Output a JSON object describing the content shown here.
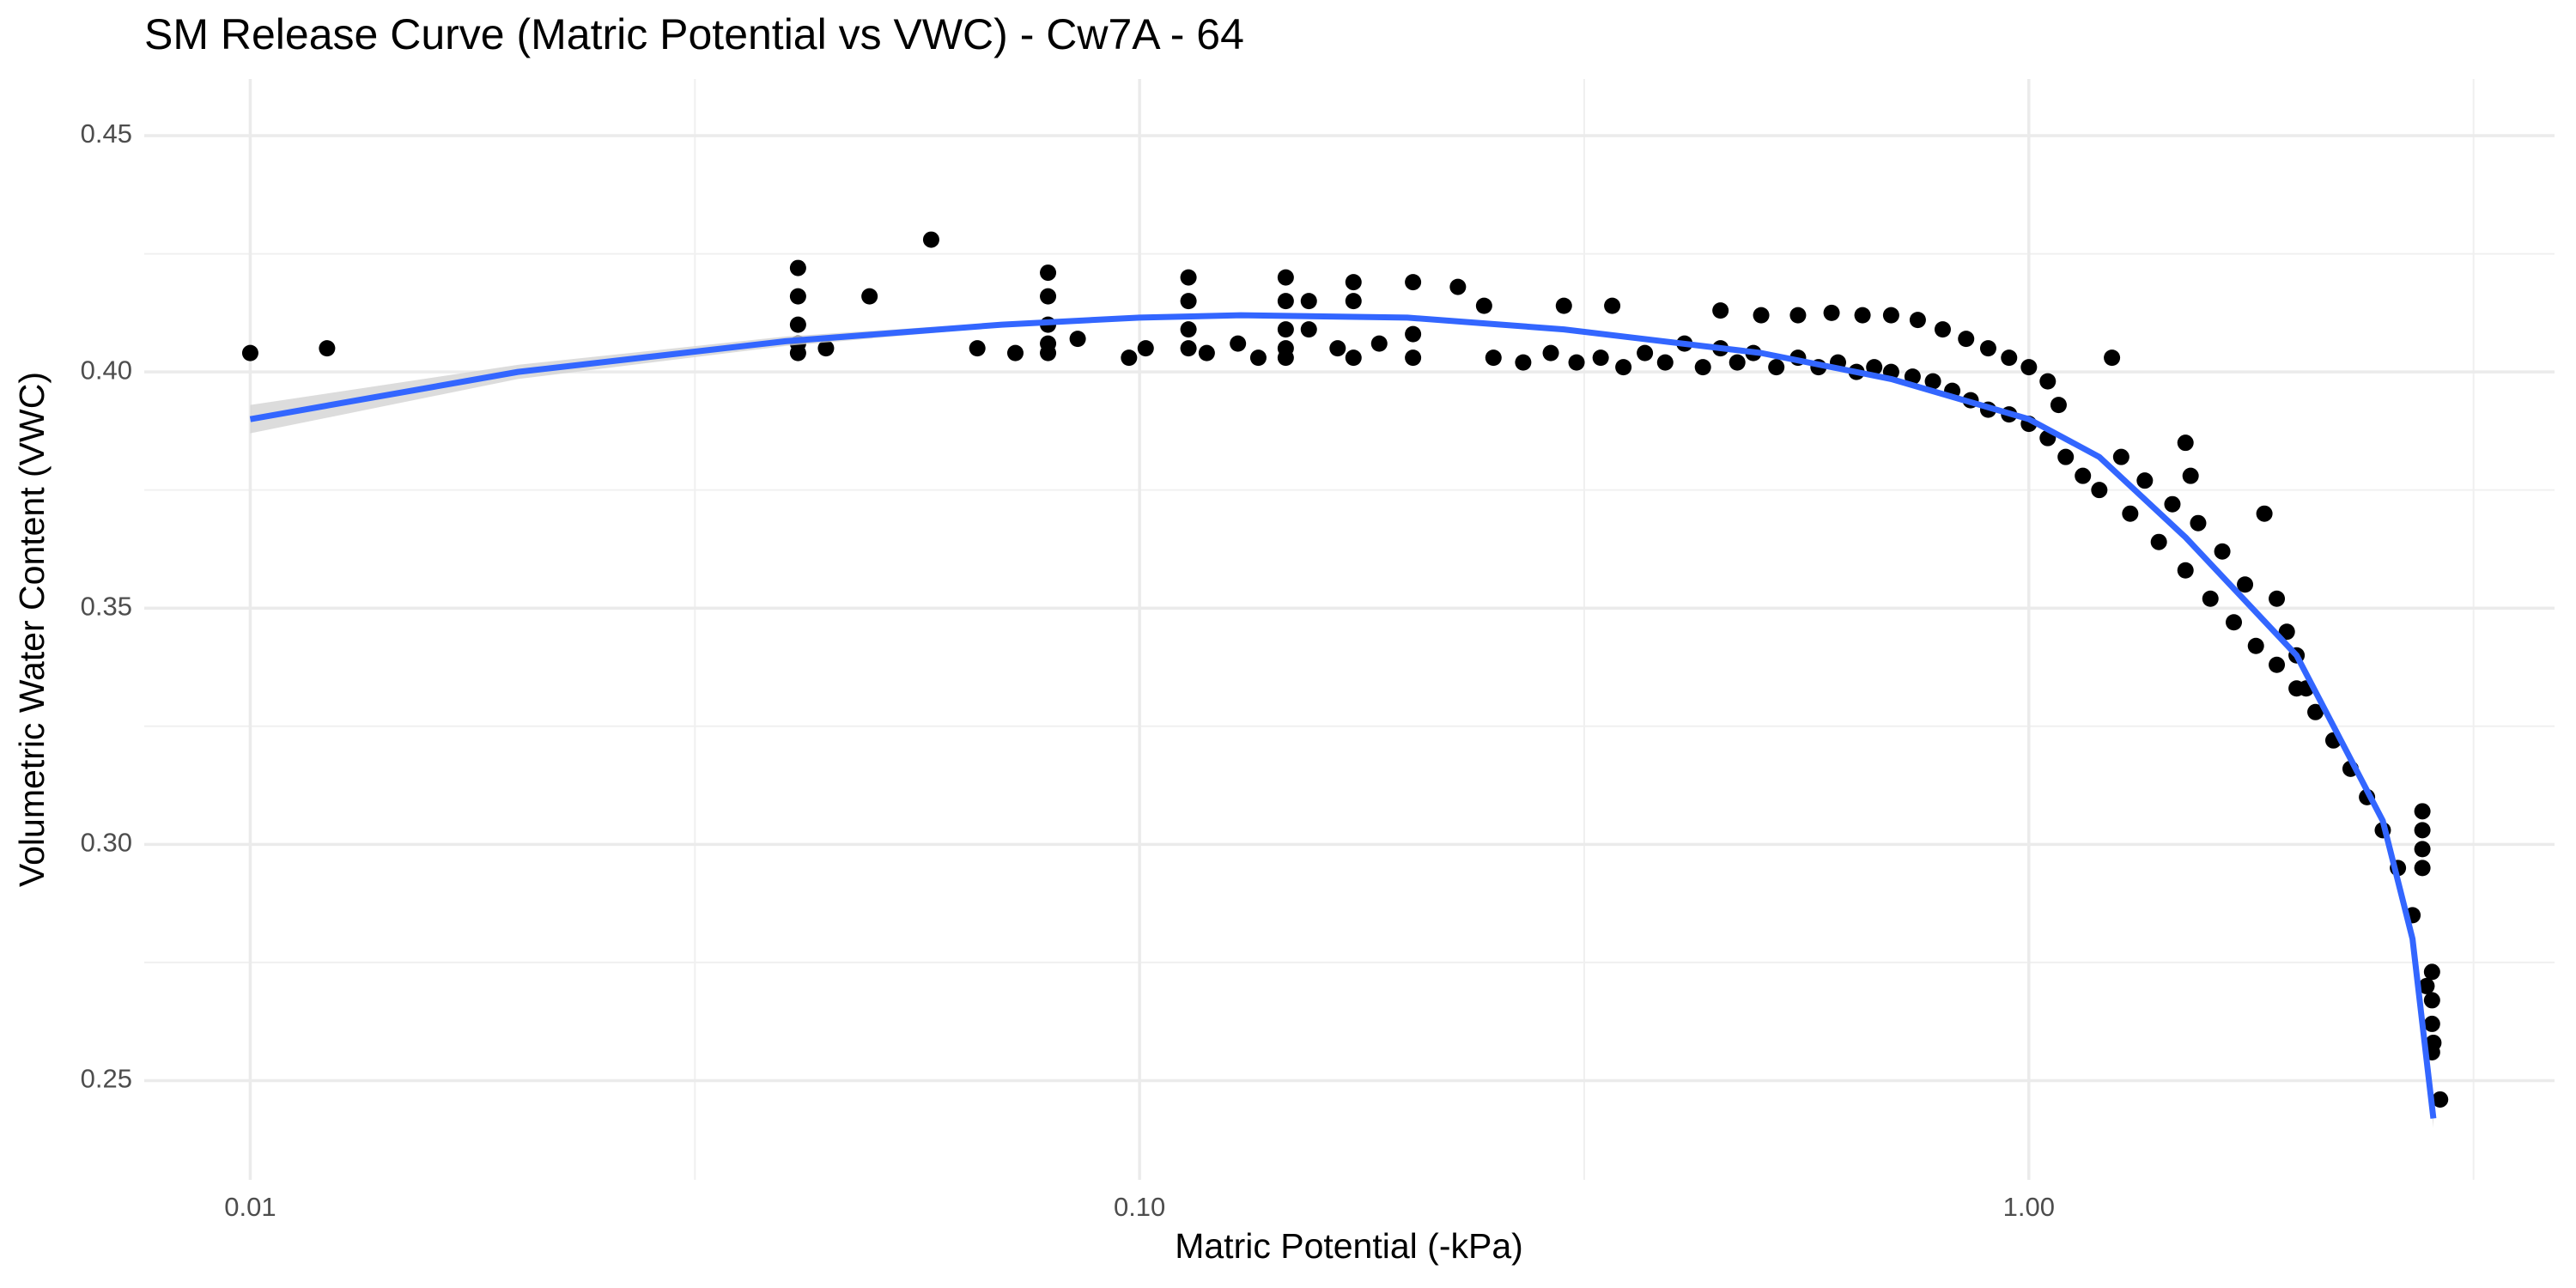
{
  "chart_data": {
    "type": "scatter",
    "title": "SM Release Curve (Matric Potential vs VWC) - Cw7A - 64",
    "x_label": "Matric Potential (-kPa)",
    "y_label": "Volumetric Water Content (VWC)",
    "log_x": true,
    "grid": true,
    "xlim": [
      0.0076,
      3.9
    ],
    "ylim": [
      0.229,
      0.462
    ],
    "xticks": [
      {
        "value": 0.01,
        "label": "0.01"
      },
      {
        "value": 0.1,
        "label": "0.10"
      },
      {
        "value": 1,
        "label": "1.00"
      }
    ],
    "yticks": [
      0.25,
      {
        "value": 0.3,
        "label": "0.30"
      },
      0.35,
      {
        "value": 0.4,
        "label": "0.40"
      },
      0.45
    ],
    "points": {
      "color": "#000000",
      "x": [
        0.01,
        0.0122,
        0.0413,
        0.0413,
        0.0413,
        0.0413,
        0.0413,
        0.0444,
        0.0497,
        0.0583,
        0.0657,
        0.0725,
        0.0789,
        0.0789,
        0.0789,
        0.0789,
        0.0789,
        0.0852,
        0.0973,
        0.1016,
        0.1135,
        0.1135,
        0.1135,
        0.1135,
        0.119,
        0.129,
        0.136,
        0.146,
        0.146,
        0.146,
        0.146,
        0.146,
        0.155,
        0.155,
        0.167,
        0.174,
        0.174,
        0.174,
        0.186,
        0.203,
        0.203,
        0.203,
        0.228,
        0.244,
        0.3,
        0.34,
        0.25,
        0.27,
        0.29,
        0.31,
        0.33,
        0.35,
        0.37,
        0.39,
        0.41,
        0.43,
        0.45,
        0.47,
        0.49,
        0.52,
        0.55,
        0.58,
        0.61,
        0.64,
        0.67,
        0.7,
        0.74,
        0.78,
        0.82,
        0.86,
        0.9,
        0.95,
        0.45,
        0.5,
        0.55,
        0.6,
        0.65,
        0.7,
        0.75,
        0.8,
        0.85,
        0.9,
        0.95,
        1.0,
        1.05,
        1.08,
        1.24,
        1.0,
        1.05,
        1.1,
        1.15,
        1.2,
        1.3,
        1.4,
        1.5,
        1.6,
        1.7,
        1.8,
        1.9,
        2.0,
        2.1,
        2.2,
        2.3,
        2.4,
        2.5,
        2.6,
        2.7,
        2.8,
        2.85,
        2.9,
        1.27,
        1.35,
        1.45,
        1.5,
        1.52,
        1.55,
        1.65,
        1.75,
        1.84,
        1.9,
        1.95,
        2.0,
        2.05,
        2.77,
        2.77,
        2.77,
        2.77,
        2.84,
        2.84,
        2.84,
        2.84
      ],
      "y": [
        0.404,
        0.405,
        0.422,
        0.416,
        0.41,
        0.406,
        0.404,
        0.405,
        0.416,
        0.428,
        0.405,
        0.404,
        0.421,
        0.416,
        0.41,
        0.406,
        0.404,
        0.407,
        0.403,
        0.405,
        0.42,
        0.415,
        0.409,
        0.405,
        0.404,
        0.406,
        0.403,
        0.42,
        0.415,
        0.409,
        0.405,
        0.403,
        0.415,
        0.409,
        0.405,
        0.419,
        0.415,
        0.403,
        0.406,
        0.419,
        0.408,
        0.403,
        0.418,
        0.414,
        0.414,
        0.414,
        0.403,
        0.402,
        0.404,
        0.402,
        0.403,
        0.401,
        0.404,
        0.402,
        0.406,
        0.401,
        0.405,
        0.402,
        0.404,
        0.401,
        0.403,
        0.401,
        0.402,
        0.4,
        0.401,
        0.4,
        0.399,
        0.398,
        0.396,
        0.394,
        0.392,
        0.391,
        0.413,
        0.412,
        0.412,
        0.4125,
        0.412,
        0.412,
        0.411,
        0.409,
        0.407,
        0.405,
        0.403,
        0.401,
        0.398,
        0.393,
        0.403,
        0.389,
        0.386,
        0.382,
        0.378,
        0.375,
        0.37,
        0.364,
        0.358,
        0.352,
        0.347,
        0.342,
        0.338,
        0.333,
        0.328,
        0.322,
        0.316,
        0.31,
        0.303,
        0.295,
        0.285,
        0.27,
        0.258,
        0.246,
        0.382,
        0.377,
        0.372,
        0.385,
        0.378,
        0.368,
        0.362,
        0.355,
        0.37,
        0.352,
        0.345,
        0.34,
        0.333,
        0.307,
        0.303,
        0.299,
        0.295,
        0.273,
        0.267,
        0.262,
        0.256
      ]
    },
    "fit": {
      "color": "#3366ff",
      "band_color": "#d3d3d3",
      "x": [
        0.01,
        0.02,
        0.04,
        0.07,
        0.1,
        0.13,
        0.2,
        0.3,
        0.5,
        0.7,
        1.0,
        1.2,
        1.5,
        2.0,
        2.5,
        2.7,
        2.85
      ],
      "y": [
        0.39,
        0.4,
        0.4065,
        0.41,
        0.4115,
        0.412,
        0.4115,
        0.409,
        0.404,
        0.3985,
        0.39,
        0.382,
        0.365,
        0.34,
        0.305,
        0.28,
        0.242
      ],
      "lower": [
        0.387,
        0.3985,
        0.4055,
        0.4095,
        0.411,
        0.4115,
        0.411,
        0.4085,
        0.4035,
        0.398,
        0.3895,
        0.3815,
        0.3645,
        0.3395,
        0.3045,
        0.279,
        0.24
      ],
      "upper": [
        0.393,
        0.4015,
        0.4075,
        0.4105,
        0.412,
        0.4125,
        0.412,
        0.4095,
        0.4045,
        0.399,
        0.3905,
        0.3825,
        0.3655,
        0.3405,
        0.3055,
        0.281,
        0.244
      ]
    }
  }
}
